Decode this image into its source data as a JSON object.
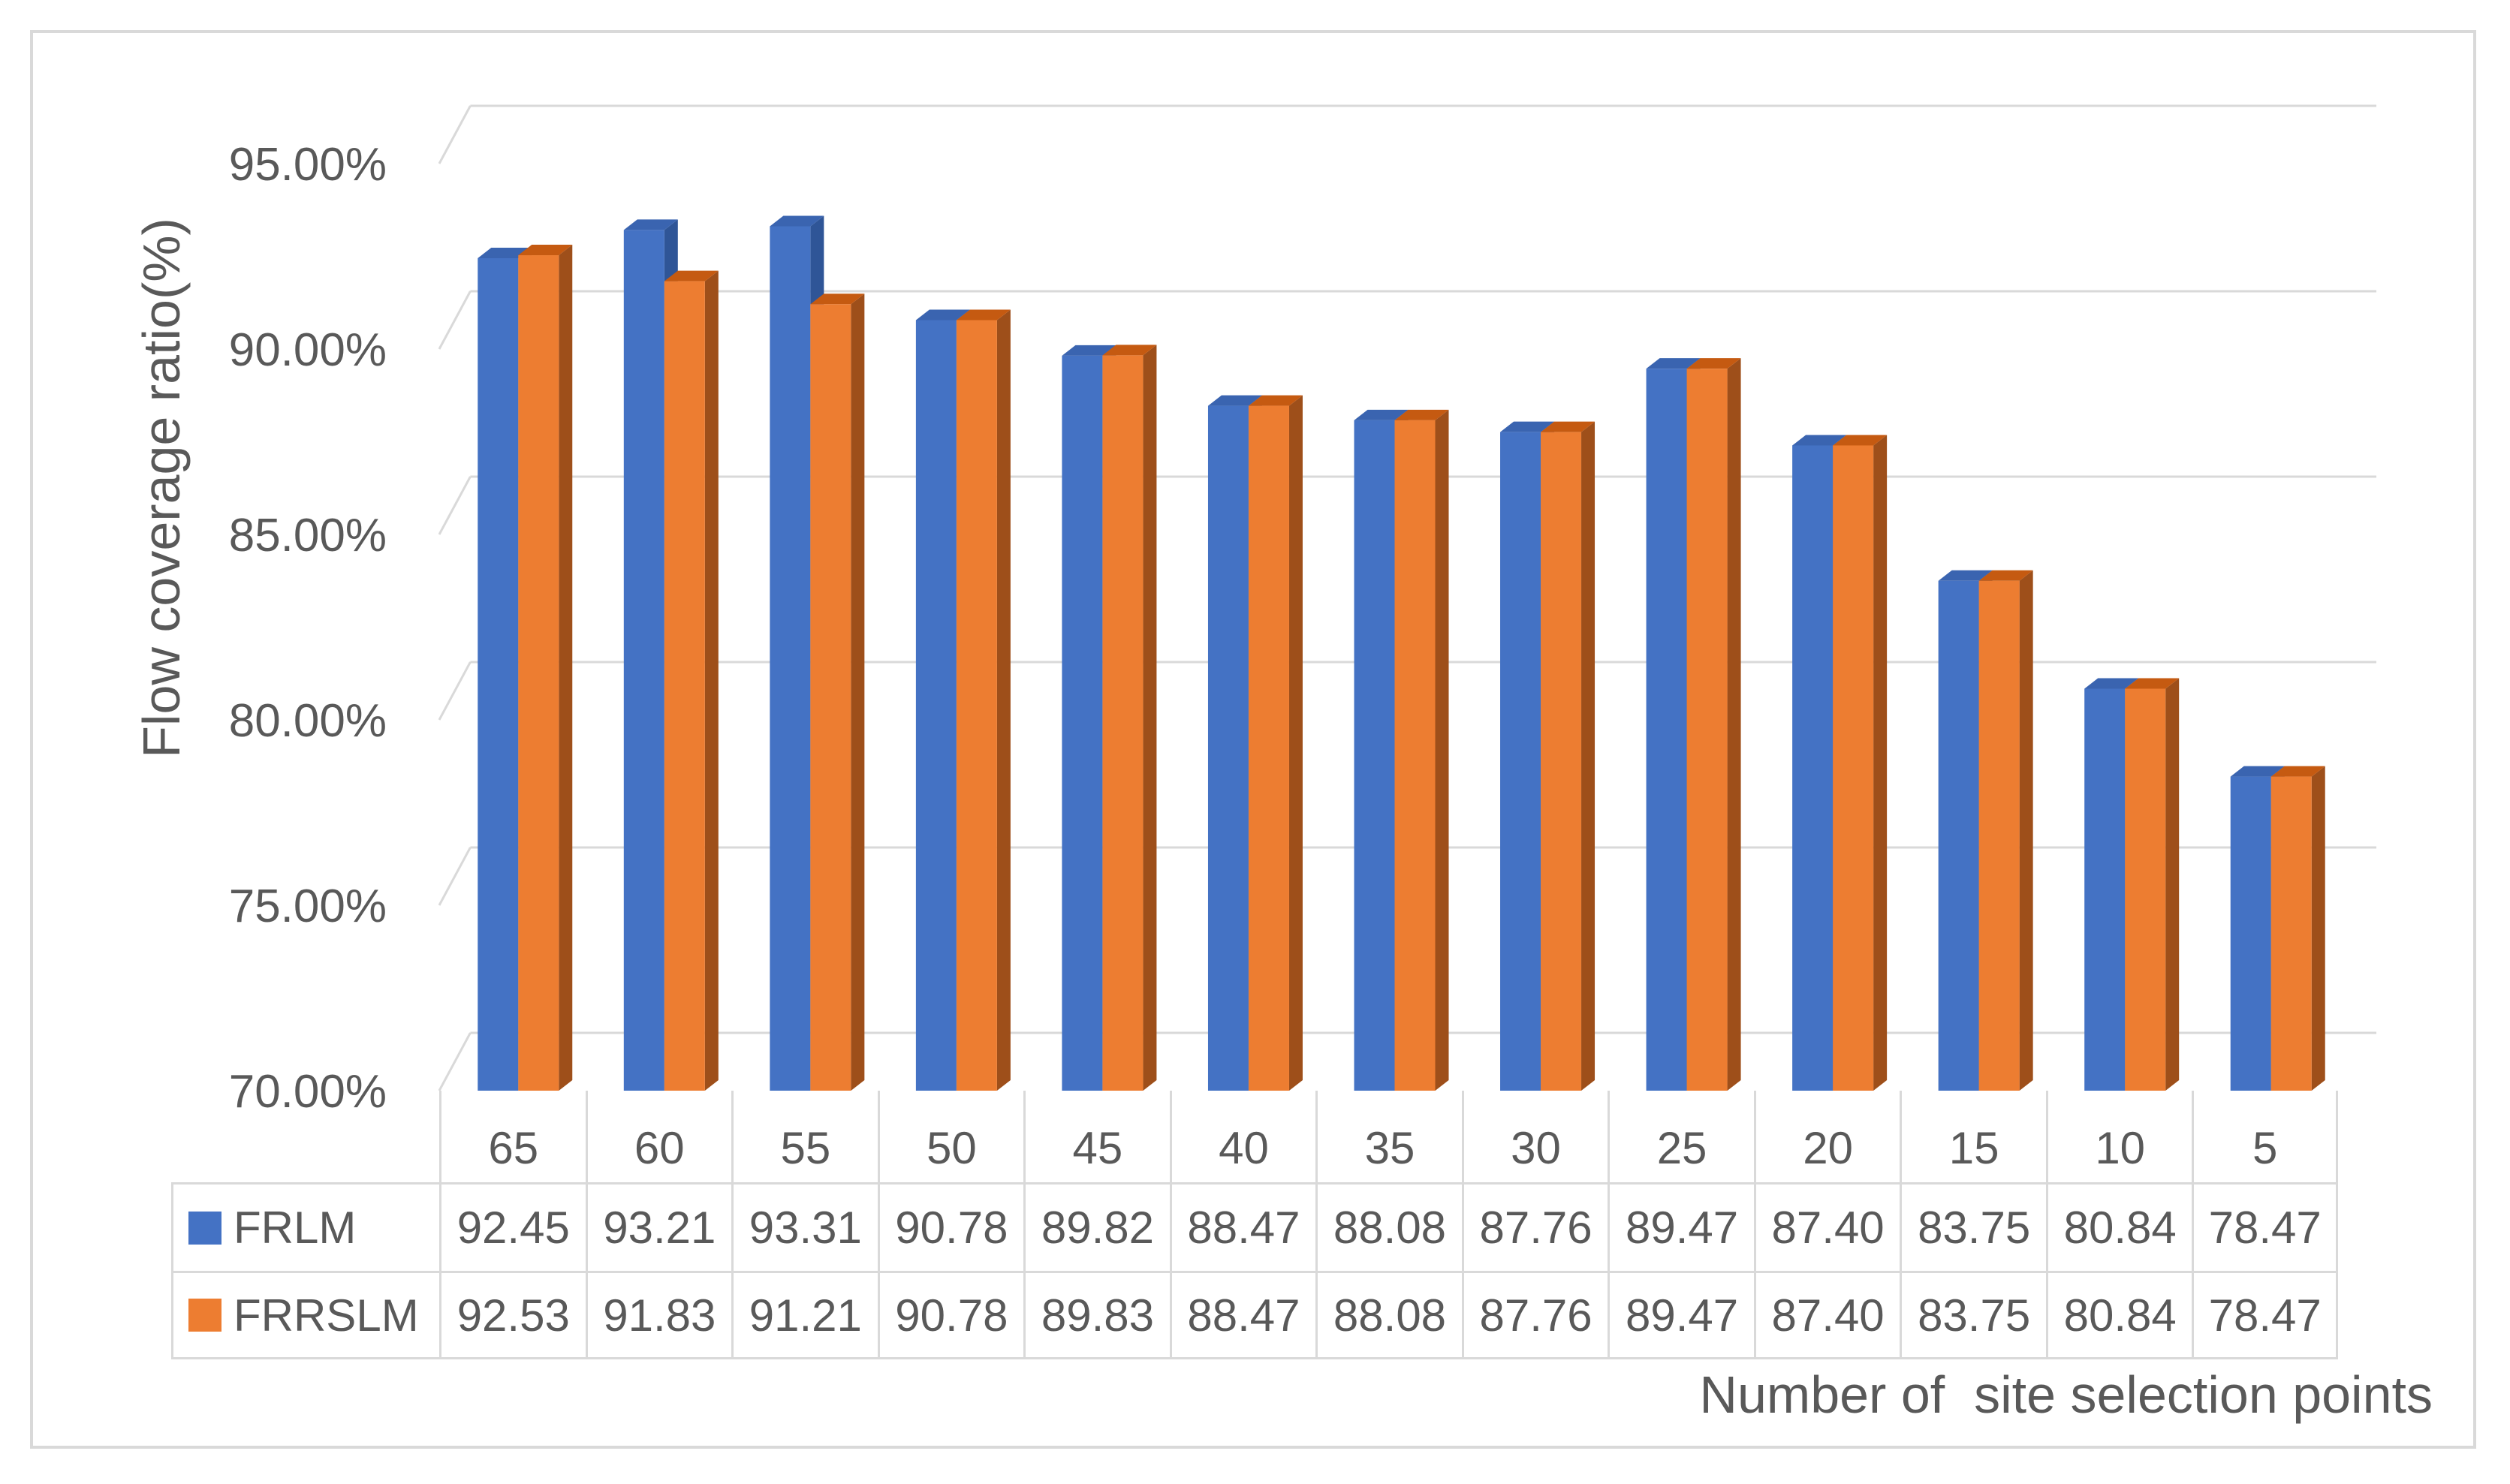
{
  "chart_data": {
    "type": "bar",
    "title": "",
    "xlabel": "Number of  site selection points",
    "ylabel": "Flow coverage ratio(%)",
    "ylim": [
      70,
      95
    ],
    "ytick_labels": [
      "95.00%",
      "90.00%",
      "85.00%",
      "80.00%",
      "75.00%",
      "70.00%"
    ],
    "categories": [
      "65",
      "60",
      "55",
      "50",
      "45",
      "40",
      "35",
      "30",
      "25",
      "20",
      "15",
      "10",
      "5"
    ],
    "series": [
      {
        "name": "FRLM",
        "color": "#4472C4",
        "values": [
          92.45,
          93.21,
          93.31,
          90.78,
          89.82,
          88.47,
          88.08,
          87.76,
          89.47,
          87.4,
          83.75,
          80.84,
          78.47
        ],
        "labels": [
          "92.45",
          "93.21",
          "93.31",
          "90.78",
          "89.82",
          "88.47",
          "88.08",
          "87.76",
          "89.47",
          "87.40",
          "83.75",
          "80.84",
          "78.47"
        ]
      },
      {
        "name": "FRRSLM",
        "color": "#ED7D31",
        "values": [
          92.53,
          91.83,
          91.21,
          90.78,
          89.83,
          88.47,
          88.08,
          87.76,
          89.47,
          87.4,
          83.75,
          80.84,
          78.47
        ],
        "labels": [
          "92.53",
          "91.83",
          "91.21",
          "90.78",
          "89.83",
          "88.47",
          "88.08",
          "87.76",
          "89.47",
          "87.40",
          "83.75",
          "80.84",
          "78.47"
        ]
      }
    ],
    "grid": true,
    "legend": "data-table",
    "style": "3d-clustered-column"
  }
}
